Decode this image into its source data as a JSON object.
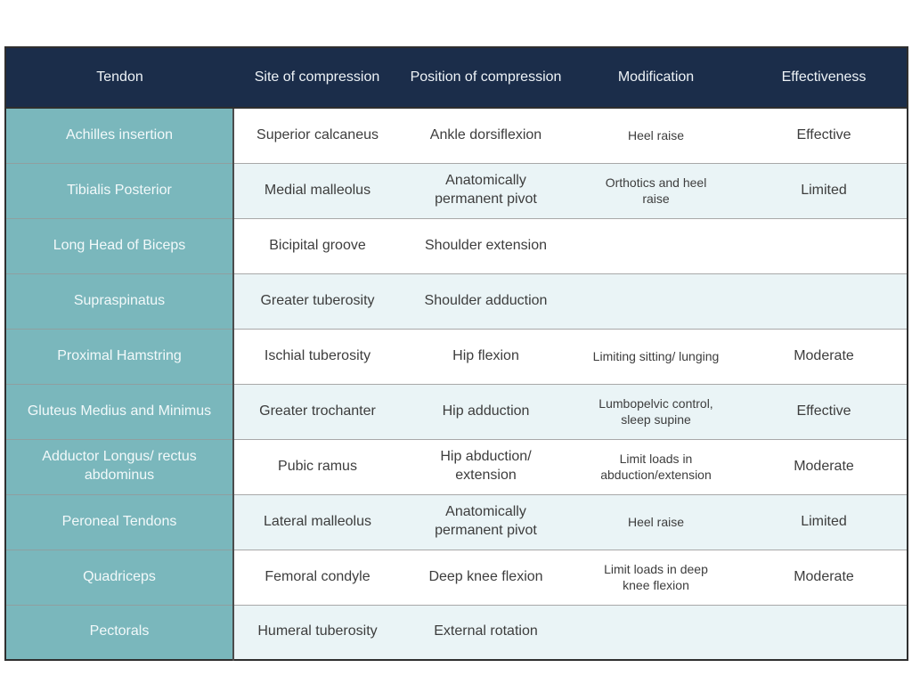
{
  "table": {
    "name": "tendon-compression-table",
    "columns": [
      "Tendon",
      "Site of compression",
      "Position of compression",
      "Modification",
      "Effectiveness"
    ],
    "rows": [
      {
        "tendon": "Achilles insertion",
        "site": "Superior calcaneus",
        "position": "Ankle dorsiflexion",
        "modification": "Heel raise",
        "effectiveness": "Effective"
      },
      {
        "tendon": "Tibialis Posterior",
        "site": "Medial malleolus",
        "position": "Anatomically permanent pivot",
        "modification": "Orthotics and heel raise",
        "effectiveness": "Limited"
      },
      {
        "tendon": "Long Head of Biceps",
        "site": "Bicipital groove",
        "position": "Shoulder extension",
        "modification": "",
        "effectiveness": ""
      },
      {
        "tendon": "Supraspinatus",
        "site": "Greater tuberosity",
        "position": "Shoulder adduction",
        "modification": "",
        "effectiveness": ""
      },
      {
        "tendon": "Proximal Hamstring",
        "site": "Ischial tuberosity",
        "position": "Hip flexion",
        "modification": "Limiting sitting/ lunging",
        "effectiveness": "Moderate"
      },
      {
        "tendon": "Gluteus Medius and Minimus",
        "site": "Greater trochanter",
        "position": "Hip adduction",
        "modification": "Lumbopelvic control, sleep supine",
        "effectiveness": "Effective"
      },
      {
        "tendon": "Adductor Longus/ rectus abdominus",
        "site": "Pubic ramus",
        "position": "Hip abduction/ extension",
        "modification": "Limit loads in abduction/extension",
        "effectiveness": "Moderate"
      },
      {
        "tendon": "Peroneal Tendons",
        "site": "Lateral malleolus",
        "position": "Anatomically permanent pivot",
        "modification": "Heel raise",
        "effectiveness": "Limited"
      },
      {
        "tendon": "Quadriceps",
        "site": "Femoral condyle",
        "position": "Deep knee flexion",
        "modification": "Limit loads in deep knee flexion",
        "effectiveness": "Moderate"
      },
      {
        "tendon": "Pectorals",
        "site": "Humeral tuberosity",
        "position": "External rotation",
        "modification": "",
        "effectiveness": ""
      }
    ]
  },
  "colors": {
    "header_bg": "#1b2d4a",
    "header_text": "#eef3f7",
    "tendon_col_bg": "#7ab7bc",
    "tendon_col_text": "#f2f9fa",
    "row_white": "#ffffff",
    "row_stripe": "#eaf4f6",
    "body_text": "#3d3d3d",
    "outer_border": "#2f2f2f",
    "row_divider": "#a8a8a8"
  }
}
